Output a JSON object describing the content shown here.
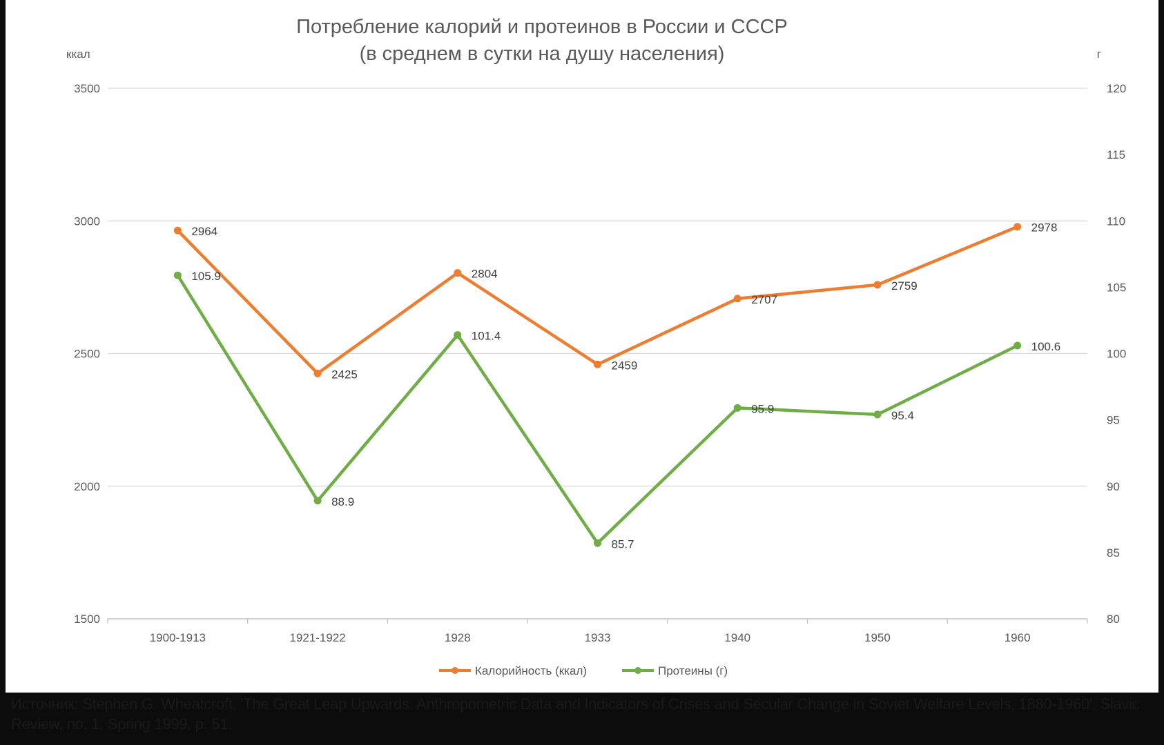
{
  "chart_data": {
    "type": "line",
    "title": "Потребление калорий и протеинов в России и СССР",
    "subtitle": "(в среднем в сутки на душу населения)",
    "y_left_unit": "ккал",
    "y_right_unit": "г",
    "categories": [
      "1900-1913",
      "1921-1922",
      "1928",
      "1933",
      "1940",
      "1950",
      "1960"
    ],
    "y_left": {
      "min": 1500,
      "max": 3500,
      "ticks": [
        1500,
        2000,
        2500,
        3000,
        3500
      ]
    },
    "y_right": {
      "min": 80,
      "max": 120,
      "ticks": [
        80,
        85,
        90,
        95,
        100,
        105,
        110,
        115,
        120
      ]
    },
    "grid": true,
    "legend_position": "bottom",
    "series": [
      {
        "name": "Калорийность (ккал)",
        "axis": "left",
        "color": "#ED7D31",
        "values": [
          2964,
          2425,
          2804,
          2459,
          2707,
          2759,
          2978
        ],
        "labels": [
          "2964",
          "2425",
          "2804",
          "2459",
          "2707",
          "2759",
          "2978"
        ]
      },
      {
        "name": "Протеины (г)",
        "axis": "right",
        "color": "#70AD47",
        "values": [
          105.9,
          88.9,
          101.4,
          85.7,
          95.9,
          95.4,
          100.6
        ],
        "labels": [
          "105.9",
          "88.9",
          "101.4",
          "85.7",
          "95.9",
          "95.4",
          "100.6"
        ]
      }
    ]
  },
  "source_note": "Источник: Stephen G. Wheatcroft, 'The Great Leap Upwards: Anthropometric Data and Indicators of Crises and Secular Change in Soviet Welfare Levels, 1880-1960', Slavic Review, no. 1, Spring 1999, p. 51."
}
